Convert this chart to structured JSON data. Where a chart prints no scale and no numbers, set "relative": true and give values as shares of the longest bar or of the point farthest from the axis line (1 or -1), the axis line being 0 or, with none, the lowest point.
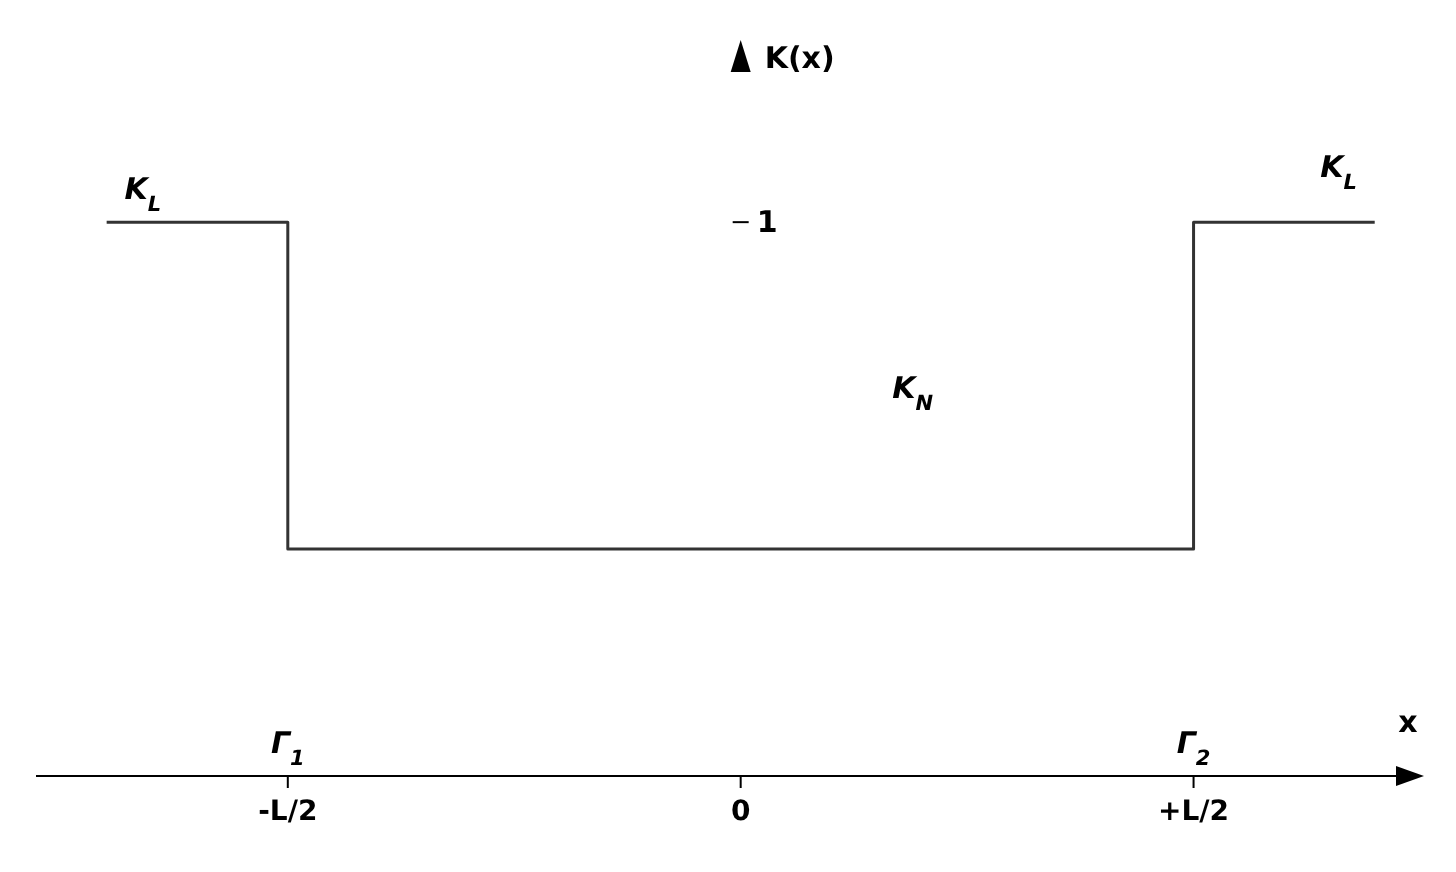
{
  "chart_data": {
    "type": "step",
    "relative": true,
    "xlabel": "x",
    "ylabel": "K(x)",
    "categories": [
      null,
      null,
      "-L/2",
      null,
      null,
      null,
      null,
      "0",
      null,
      null,
      null,
      null,
      "+L/2",
      null,
      null
    ],
    "series": [
      {
        "color": "#333333",
        "values": [
          1,
          1,
          0.41,
          0.41,
          0.41,
          0.41,
          0.41,
          0.41,
          0.41,
          0.41,
          0.41,
          0.41,
          1,
          1,
          1
        ]
      }
    ],
    "annotations": [
      "1",
      "K$_{L}$",
      "K$_{L}$",
      "K$_{N}$",
      "Γ$_{1}$",
      "Γ$_{2}$"
    ],
    "grid": false,
    "legend": false,
    "marker": "none",
    "line_style": "solid"
  }
}
